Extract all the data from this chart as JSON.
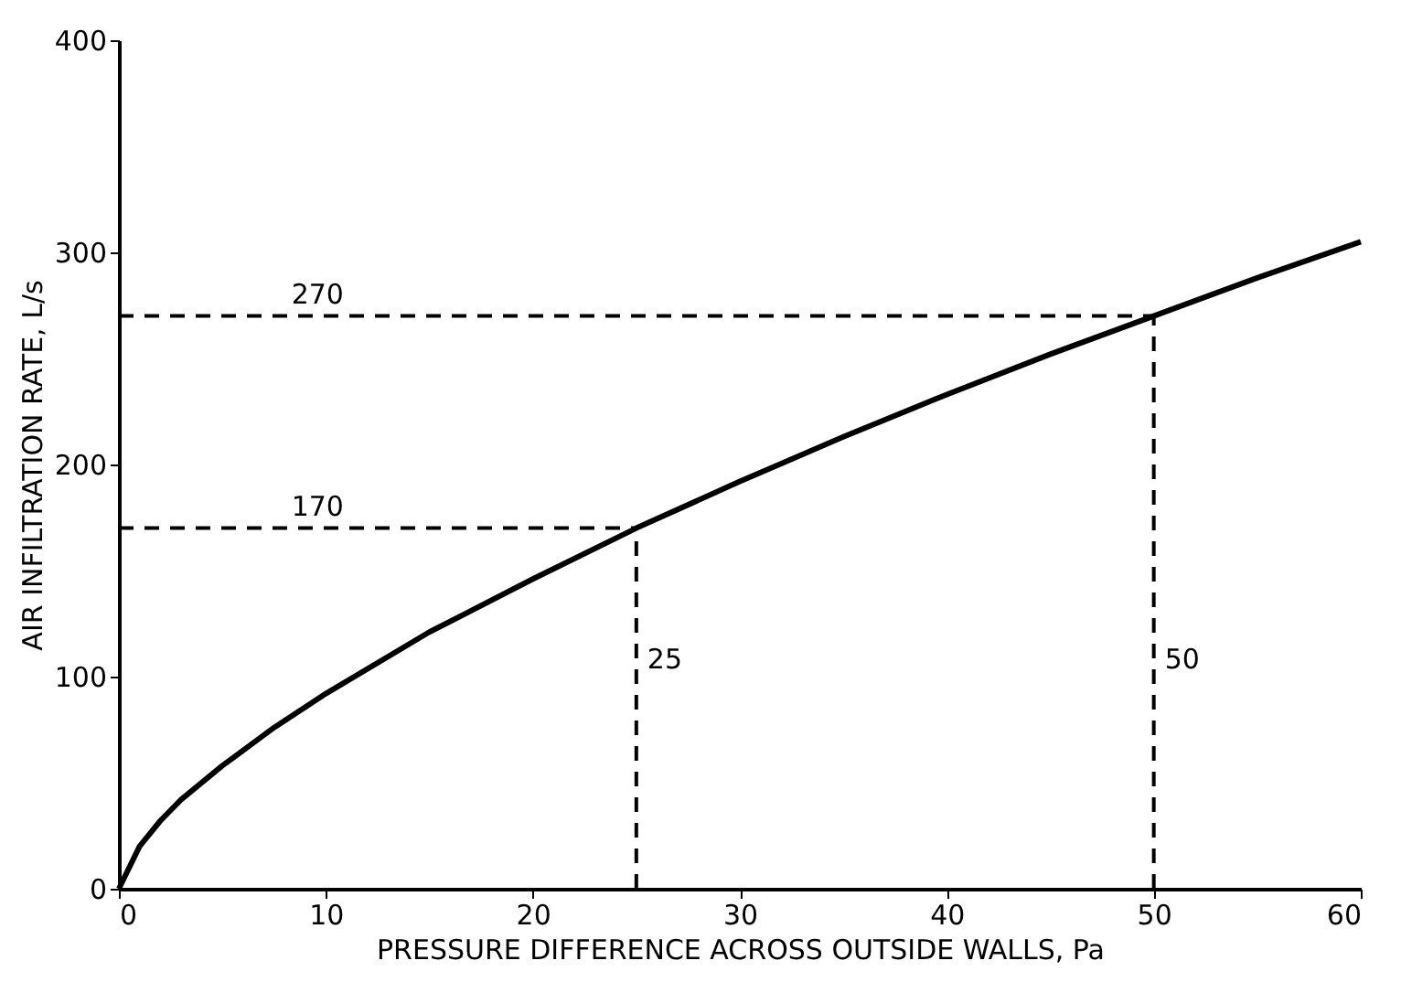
{
  "chart_data": {
    "type": "line",
    "xlabel": "PRESSURE DIFFERENCE ACROSS OUTSIDE WALLS, Pa",
    "ylabel": "AIR INFILTRATION RATE, L/s",
    "x": [
      0,
      1,
      2,
      3,
      5,
      7.5,
      10,
      15,
      20,
      25,
      30,
      35,
      40,
      45,
      50,
      55,
      60
    ],
    "series": [
      {
        "color": "#000000",
        "values": [
          0,
          20,
          32,
          42,
          58,
          76,
          92,
          121,
          146,
          170,
          192,
          213,
          233,
          252,
          270,
          288,
          305
        ]
      }
    ],
    "xlim": [
      0,
      60
    ],
    "xticks": [
      0,
      10,
      20,
      30,
      40,
      50,
      60
    ],
    "ylim": [
      0,
      400
    ],
    "yticks": [
      0,
      100,
      200,
      300,
      400
    ],
    "grid": false,
    "marker": "none",
    "line_style": "solid",
    "ref_lines": [
      {
        "axis": "y",
        "value": 270,
        "label": "270",
        "line_style": "dashed",
        "color": "#000000"
      },
      {
        "axis": "y",
        "value": 170,
        "label": "170",
        "line_style": "dashed",
        "color": "#000000"
      },
      {
        "axis": "x",
        "value": 25,
        "label": "25",
        "line_style": "dashed",
        "color": "#000000"
      },
      {
        "axis": "x",
        "value": 50,
        "label": "50",
        "line_style": "dashed",
        "color": "#000000"
      }
    ]
  }
}
